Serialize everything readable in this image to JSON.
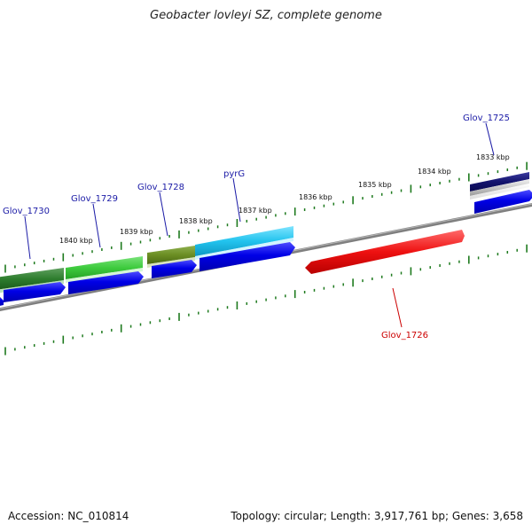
{
  "title": "Geobacter lovleyi SZ, complete genome",
  "footer": {
    "accession": "Accession: NC_010814",
    "summary": "Topology: circular; Length: 3,917,761 bp; Genes: 3,658"
  },
  "colors": {
    "backbone": "#7f7f7f",
    "tick": "#1e7a1e",
    "label_forward": "#1a1aa6",
    "label_reverse": "#cc0000",
    "cds": "#0000e6",
    "reverse_gene": "#ee1111"
  },
  "tick_labels": [
    "1840 kbp",
    "1839 kbp",
    "1838 kbp",
    "1837 kbp",
    "1836 kbp",
    "1835 kbp",
    "1834 kbp",
    "1833 kbp"
  ],
  "gene_labels": [
    {
      "name": "Glov_1730",
      "strand": "forward"
    },
    {
      "name": "Glov_1729",
      "strand": "forward"
    },
    {
      "name": "Glov_1728",
      "strand": "forward"
    },
    {
      "name": "pyrG",
      "strand": "forward"
    },
    {
      "name": "Glov_1725",
      "strand": "forward"
    },
    {
      "name": "Glov_1726",
      "strand": "reverse"
    }
  ]
}
